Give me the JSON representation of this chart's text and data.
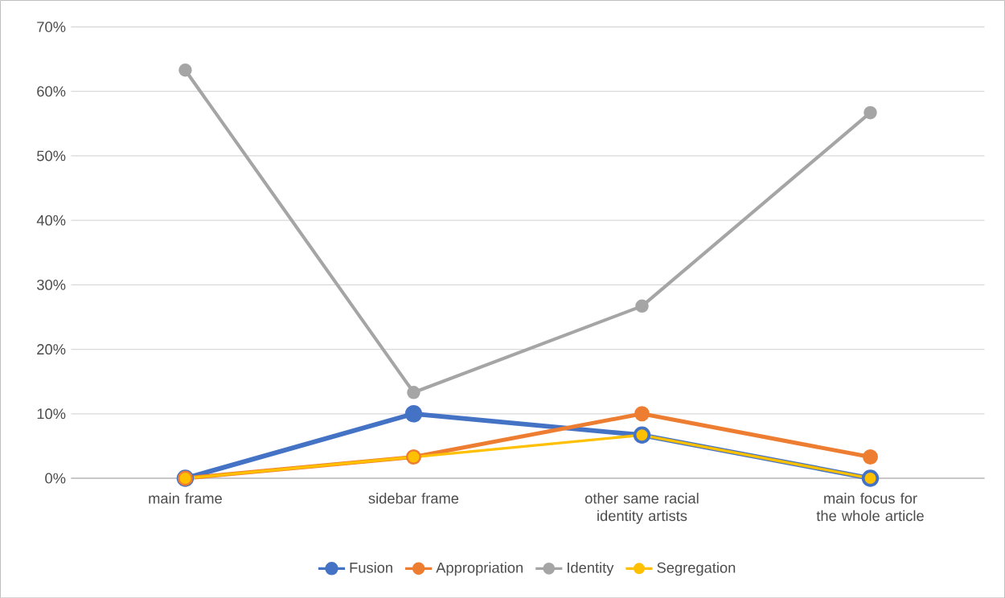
{
  "chart_data": {
    "type": "line",
    "categories": [
      "main frame",
      "sidebar frame",
      "other same racial identity artists",
      "main focus for the whole article"
    ],
    "series": [
      {
        "name": "Fusion",
        "color": "#4472c4",
        "values": [
          0,
          10,
          6.7,
          0
        ]
      },
      {
        "name": "Appropriation",
        "color": "#ed7d31",
        "values": [
          0,
          3.3,
          10,
          3.3
        ]
      },
      {
        "name": "Identity",
        "color": "#a5a5a5",
        "values": [
          63.3,
          13.3,
          26.7,
          56.7
        ]
      },
      {
        "name": "Segregation",
        "color": "#ffc000",
        "values": [
          0,
          3.3,
          6.7,
          0
        ]
      }
    ],
    "ylim": [
      0,
      70
    ],
    "yticks": [
      {
        "value": 0,
        "label": "0%"
      },
      {
        "value": 10,
        "label": "10%"
      },
      {
        "value": 20,
        "label": "20%"
      },
      {
        "value": 30,
        "label": "30%"
      },
      {
        "value": 40,
        "label": "40%"
      },
      {
        "value": 50,
        "label": "50%"
      },
      {
        "value": 60,
        "label": "60%"
      },
      {
        "value": 70,
        "label": "70%"
      }
    ],
    "grid": "y",
    "legend": "bottom",
    "marker": "circle",
    "line_style": "solid"
  }
}
